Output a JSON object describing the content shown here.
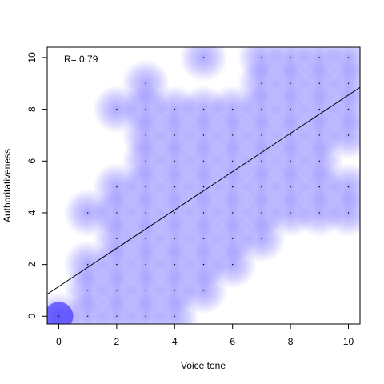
{
  "chart_data": {
    "type": "scatter",
    "xlabel": "Voice tone",
    "ylabel": "Authoritativeness",
    "xlim": [
      -0.4,
      10.4
    ],
    "ylim": [
      -0.3,
      10.4
    ],
    "xticks": [
      0,
      2,
      4,
      6,
      8,
      10
    ],
    "yticks": [
      0,
      2,
      4,
      6,
      8,
      10
    ],
    "annotation": "R= 0.79",
    "grid": false,
    "legend": "none",
    "density_color": "#1f0fff",
    "line_color": "#000000",
    "regression": {
      "intercept": 1.15,
      "slope": 0.74
    },
    "points": [
      {
        "x": 0,
        "y": 0
      },
      {
        "x": 1,
        "y": 0
      },
      {
        "x": 2,
        "y": 0
      },
      {
        "x": 3,
        "y": 0
      },
      {
        "x": 4,
        "y": 0
      },
      {
        "x": 1,
        "y": 1
      },
      {
        "x": 2,
        "y": 1
      },
      {
        "x": 3,
        "y": 1
      },
      {
        "x": 4,
        "y": 1
      },
      {
        "x": 5,
        "y": 1
      },
      {
        "x": 1,
        "y": 2
      },
      {
        "x": 2,
        "y": 2
      },
      {
        "x": 3,
        "y": 2
      },
      {
        "x": 4,
        "y": 2
      },
      {
        "x": 5,
        "y": 2
      },
      {
        "x": 6,
        "y": 2
      },
      {
        "x": 2,
        "y": 3
      },
      {
        "x": 3,
        "y": 3
      },
      {
        "x": 4,
        "y": 3
      },
      {
        "x": 5,
        "y": 3
      },
      {
        "x": 6,
        "y": 3
      },
      {
        "x": 7,
        "y": 3
      },
      {
        "x": 1,
        "y": 4
      },
      {
        "x": 2,
        "y": 4
      },
      {
        "x": 3,
        "y": 4
      },
      {
        "x": 4,
        "y": 4
      },
      {
        "x": 5,
        "y": 4
      },
      {
        "x": 6,
        "y": 4
      },
      {
        "x": 7,
        "y": 4
      },
      {
        "x": 8,
        "y": 4
      },
      {
        "x": 9,
        "y": 4
      },
      {
        "x": 10,
        "y": 4
      },
      {
        "x": 2,
        "y": 5
      },
      {
        "x": 3,
        "y": 5
      },
      {
        "x": 4,
        "y": 5
      },
      {
        "x": 5,
        "y": 5
      },
      {
        "x": 6,
        "y": 5
      },
      {
        "x": 7,
        "y": 5
      },
      {
        "x": 8,
        "y": 5
      },
      {
        "x": 9,
        "y": 5
      },
      {
        "x": 10,
        "y": 5
      },
      {
        "x": 3,
        "y": 6
      },
      {
        "x": 4,
        "y": 6
      },
      {
        "x": 5,
        "y": 6
      },
      {
        "x": 6,
        "y": 6
      },
      {
        "x": 7,
        "y": 6
      },
      {
        "x": 8,
        "y": 6
      },
      {
        "x": 9,
        "y": 6
      },
      {
        "x": 3,
        "y": 7
      },
      {
        "x": 4,
        "y": 7
      },
      {
        "x": 5,
        "y": 7
      },
      {
        "x": 6,
        "y": 7
      },
      {
        "x": 7,
        "y": 7
      },
      {
        "x": 8,
        "y": 7
      },
      {
        "x": 9,
        "y": 7
      },
      {
        "x": 10,
        "y": 7
      },
      {
        "x": 2,
        "y": 8
      },
      {
        "x": 3,
        "y": 8
      },
      {
        "x": 4,
        "y": 8
      },
      {
        "x": 5,
        "y": 8
      },
      {
        "x": 6,
        "y": 8
      },
      {
        "x": 7,
        "y": 8
      },
      {
        "x": 8,
        "y": 8
      },
      {
        "x": 9,
        "y": 8
      },
      {
        "x": 10,
        "y": 8
      },
      {
        "x": 3,
        "y": 9
      },
      {
        "x": 7,
        "y": 9
      },
      {
        "x": 8,
        "y": 9
      },
      {
        "x": 9,
        "y": 9
      },
      {
        "x": 10,
        "y": 9
      },
      {
        "x": 5,
        "y": 10
      },
      {
        "x": 7,
        "y": 10
      },
      {
        "x": 8,
        "y": 10
      },
      {
        "x": 9,
        "y": 10
      },
      {
        "x": 10,
        "y": 10
      }
    ]
  }
}
